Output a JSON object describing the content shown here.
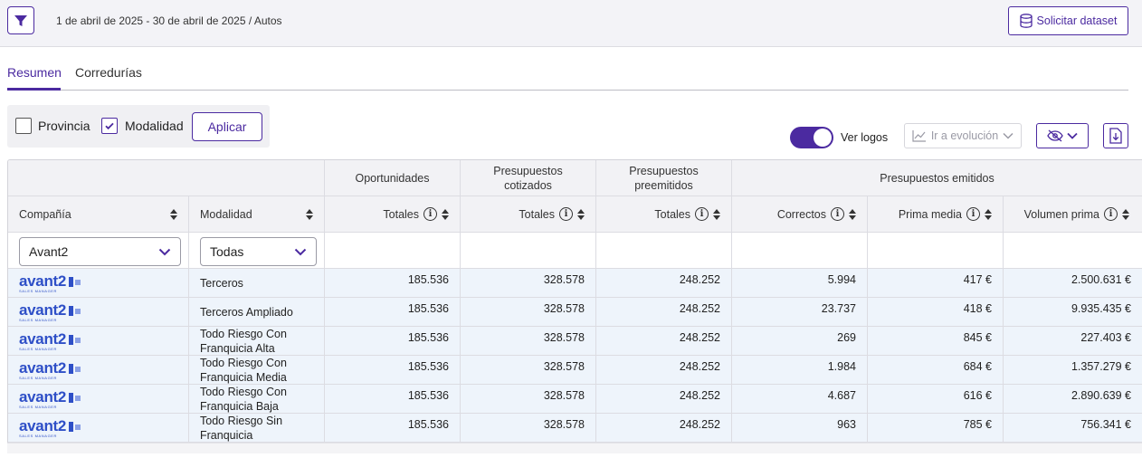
{
  "header": {
    "breadcrumb": "1 de abril de 2025 - 30 de abril de 2025 / Autos",
    "dataset_button": "Solicitar dataset"
  },
  "tabs": [
    {
      "label": "Resumen",
      "active": true
    },
    {
      "label": "Corredurías",
      "active": false
    }
  ],
  "options": {
    "provincia_label": "Provincia",
    "provincia_checked": false,
    "modalidad_label": "Modalidad",
    "modalidad_checked": true,
    "apply_label": "Aplicar"
  },
  "toolbar": {
    "logos_label": "Ver logos",
    "logos_on": true,
    "evolution_label": "Ir a evolución"
  },
  "table": {
    "groups": {
      "oportunidades": "Oportunidades",
      "cotizados": "Presupuestos cotizados",
      "preemitidos": "Presupuestos preemitidos",
      "emitidos": "Presupuestos emitidos"
    },
    "columns": {
      "compania": "Compañía",
      "modalidad": "Modalidad",
      "op_totales": "Totales",
      "cot_totales": "Totales",
      "pre_totales": "Totales",
      "correctos": "Correctos",
      "prima_media": "Prima media",
      "volumen_prima": "Volumen prima"
    },
    "filters": {
      "compania": "Avant2",
      "modalidad": "Todas"
    },
    "logo": {
      "name": "avant2",
      "tagline": "SALES MANAGER"
    },
    "rows": [
      {
        "modalidad": "Terceros",
        "oportunidades": "185.536",
        "cotizados": "328.578",
        "preemitidos": "248.252",
        "correctos": "5.994",
        "prima_media": "417 €",
        "volumen_prima": "2.500.631 €"
      },
      {
        "modalidad": "Terceros Ampliado",
        "oportunidades": "185.536",
        "cotizados": "328.578",
        "preemitidos": "248.252",
        "correctos": "23.737",
        "prima_media": "418 €",
        "volumen_prima": "9.935.435 €"
      },
      {
        "modalidad": "Todo Riesgo Con Franquicia Alta",
        "oportunidades": "185.536",
        "cotizados": "328.578",
        "preemitidos": "248.252",
        "correctos": "269",
        "prima_media": "845 €",
        "volumen_prima": "227.403 €"
      },
      {
        "modalidad": "Todo Riesgo Con Franquicia Media",
        "oportunidades": "185.536",
        "cotizados": "328.578",
        "preemitidos": "248.252",
        "correctos": "1.984",
        "prima_media": "684 €",
        "volumen_prima": "1.357.279 €"
      },
      {
        "modalidad": "Todo Riesgo Con Franquicia Baja",
        "oportunidades": "185.536",
        "cotizados": "328.578",
        "preemitidos": "248.252",
        "correctos": "4.687",
        "prima_media": "616 €",
        "volumen_prima": "2.890.639 €"
      },
      {
        "modalidad": "Todo Riesgo Sin Franquicia",
        "oportunidades": "185.536",
        "cotizados": "328.578",
        "preemitidos": "248.252",
        "correctos": "963",
        "prima_media": "785 €",
        "volumen_prima": "756.341 €"
      }
    ]
  },
  "colors": {
    "accent": "#4b2aa0",
    "logo_blue": "#2e4fc7",
    "row_bg": "#eef4fb",
    "header_bg": "#f2f2f5"
  }
}
